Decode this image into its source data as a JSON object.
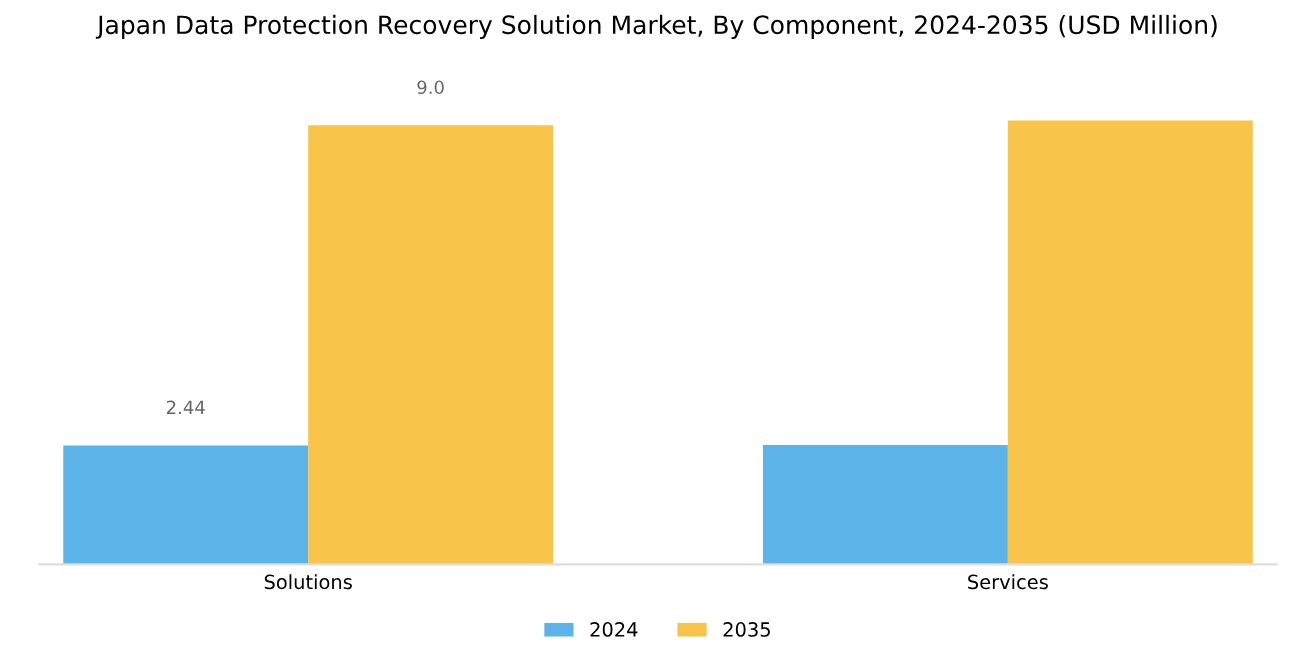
{
  "chart_data": {
    "type": "bar",
    "title": "Japan Data Protection Recovery Solution Market, By Component, 2024-2035 (USD Million)",
    "categories": [
      "Solutions",
      "Services"
    ],
    "series": [
      {
        "name": "2024",
        "color": "#5cb3e8",
        "values": [
          2.44,
          2.45
        ],
        "value_labels": [
          "2.44",
          null
        ]
      },
      {
        "name": "2035",
        "color": "#f8c44a",
        "values": [
          9.0,
          9.1
        ],
        "value_labels": [
          "9.0",
          null
        ]
      }
    ],
    "grid": false,
    "legend": "bottom"
  }
}
